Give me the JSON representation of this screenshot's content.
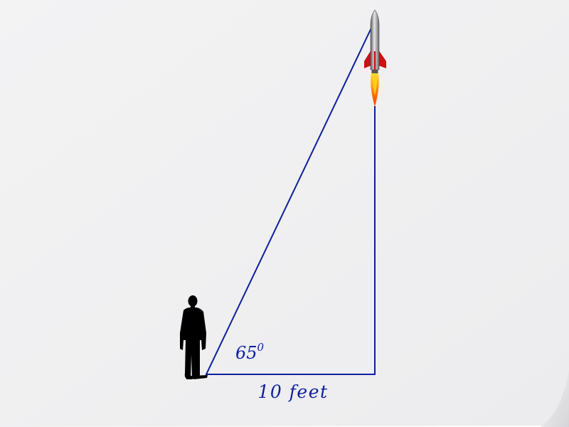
{
  "diagram": {
    "angle": {
      "value": "65",
      "degree_symbol": "0"
    },
    "base_label": "10 feet"
  },
  "colors": {
    "paper": "#f1f1f2",
    "paper_curl": "#e4e4e6",
    "triangle_line": "#0d1f9a",
    "label_text": "#0d1f9a",
    "silhouette": "#000000",
    "rocket_body": "#a8a8a8",
    "rocket_fins": "#cc1111",
    "rocket_flame_outer": "#ff5a00",
    "rocket_flame_inner": "#ffd21a"
  },
  "icons": {
    "person": "person-silhouette-icon",
    "rocket": "rocket-icon"
  }
}
